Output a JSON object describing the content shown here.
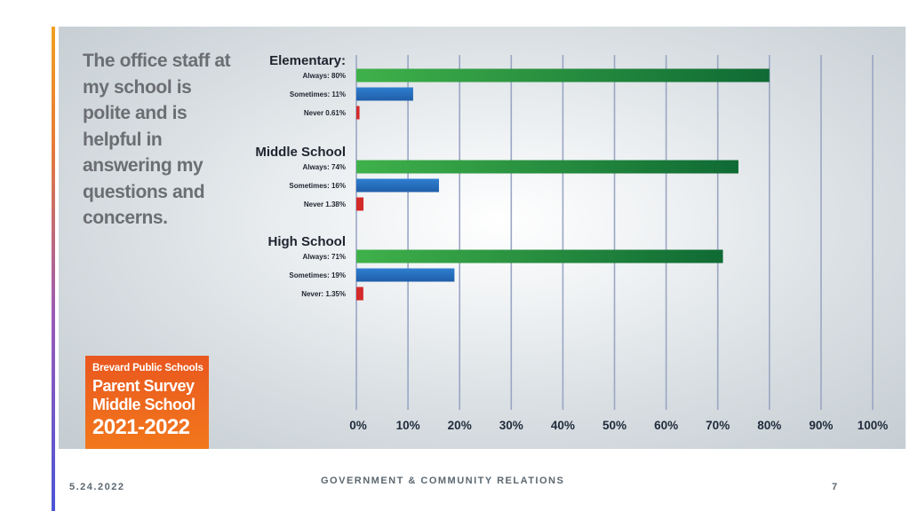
{
  "slide": {
    "question": "The office staff at my school is polite and is helpful in answering my questions and concerns.",
    "badge": {
      "line1": "Brevard Public Schools",
      "line2": "Parent Survey",
      "line3": "Middle School",
      "line4": "2021-2022"
    }
  },
  "footer": {
    "date": "5.24.2022",
    "center": "GOVERNMENT & COMMUNITY RELATIONS",
    "page": "7"
  },
  "colors": {
    "always": "#2e9a3e",
    "sometimes": "#2a6fbd",
    "never": "#d42a2a",
    "grid": "#9aa6c4"
  },
  "chart_data": {
    "type": "bar",
    "orientation": "horizontal",
    "xlim": [
      0,
      100
    ],
    "xticks": [
      "0%",
      "10%",
      "20%",
      "30%",
      "40%",
      "50%",
      "60%",
      "70%",
      "80%",
      "90%",
      "100%"
    ],
    "grid": true,
    "groups": [
      {
        "name": "Elementary:",
        "bars": [
          {
            "label": "Always: 80%",
            "value": 80,
            "kind": "always"
          },
          {
            "label": "Sometimes: 11%",
            "value": 11,
            "kind": "sometimes"
          },
          {
            "label": "Never 0.61%",
            "value": 0.61,
            "kind": "never"
          }
        ]
      },
      {
        "name": "Middle School",
        "bars": [
          {
            "label": "Always: 74%",
            "value": 74,
            "kind": "always"
          },
          {
            "label": "Sometimes: 16%",
            "value": 16,
            "kind": "sometimes"
          },
          {
            "label": "Never 1.38%",
            "value": 1.38,
            "kind": "never"
          }
        ]
      },
      {
        "name": "High School",
        "bars": [
          {
            "label": "Always: 71%",
            "value": 71,
            "kind": "always"
          },
          {
            "label": "Sometimes: 19%",
            "value": 19,
            "kind": "sometimes"
          },
          {
            "label": "Never: 1.35%",
            "value": 1.35,
            "kind": "never"
          }
        ]
      }
    ]
  }
}
